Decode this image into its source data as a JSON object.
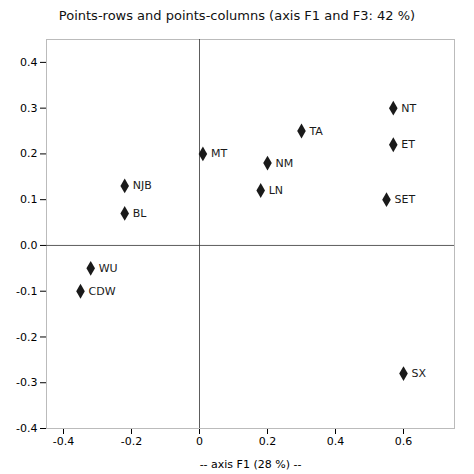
{
  "chart_data": {
    "type": "scatter",
    "title": "Points-rows and points-columns (axis F1 and F3: 42 %)",
    "xlabel": "-- axis F1 (28 %) --",
    "points": [
      {
        "label": "NT",
        "x": 0.57,
        "y": 0.3
      },
      {
        "label": "ET",
        "x": 0.57,
        "y": 0.22
      },
      {
        "label": "SET",
        "x": 0.55,
        "y": 0.1
      },
      {
        "label": "TA",
        "x": 0.3,
        "y": 0.25
      },
      {
        "label": "NM",
        "x": 0.2,
        "y": 0.18
      },
      {
        "label": "LN",
        "x": 0.18,
        "y": 0.12
      },
      {
        "label": "MT",
        "x": 0.01,
        "y": 0.2
      },
      {
        "label": "NJB",
        "x": -0.22,
        "y": 0.13
      },
      {
        "label": "BL",
        "x": -0.22,
        "y": 0.07
      },
      {
        "label": "WU",
        "x": -0.32,
        "y": -0.05
      },
      {
        "label": "CDW",
        "x": -0.35,
        "y": -0.1
      },
      {
        "label": "SX",
        "x": 0.6,
        "y": -0.28
      }
    ],
    "color": "#1a1a1a",
    "marker": "diamond",
    "xlim": [
      -0.45,
      0.75
    ],
    "ylim": [
      -0.4,
      0.45
    ],
    "xticks": [
      -0.4,
      -0.2,
      0,
      0.2,
      0.4,
      0.6
    ],
    "yticks": [
      -0.4,
      -0.3,
      -0.2,
      -0.1,
      {
        "value": 0,
        "label": "0.0"
      },
      0.1,
      0.2,
      0.3,
      0.4
    ],
    "grid": false
  }
}
